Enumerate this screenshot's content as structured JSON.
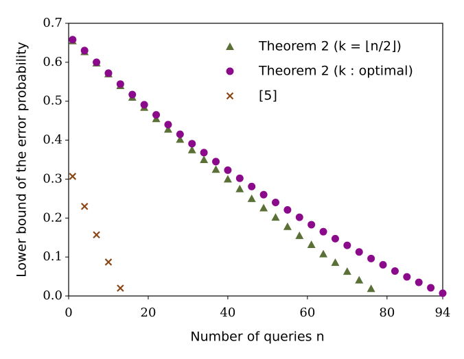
{
  "chart_data": {
    "type": "scatter",
    "xlabel": "Number of queries n",
    "ylabel": "Lower bound of the error probability",
    "xlim": [
      0,
      94
    ],
    "ylim": [
      0,
      0.7
    ],
    "xticks": [
      0,
      20,
      40,
      60,
      80,
      94
    ],
    "yticks": [
      {
        "value": 0,
        "label": "0.0"
      },
      0.1,
      0.2,
      0.3,
      0.4,
      0.5,
      0.6,
      0.7
    ],
    "legend": "upper right",
    "series": [
      {
        "name": "Theorem 2 (k = ⌊n/2⌋)",
        "color": "#5a7036",
        "marker": "triangle",
        "x": [
          1,
          4,
          7,
          10,
          13,
          16,
          19,
          22,
          25,
          28,
          31,
          34,
          37,
          40,
          43,
          46,
          49,
          52,
          55,
          58,
          61,
          64,
          67,
          70,
          73,
          76
        ],
        "values": [
          0.655,
          0.627,
          0.598,
          0.57,
          0.54,
          0.51,
          0.484,
          0.455,
          0.428,
          0.402,
          0.375,
          0.35,
          0.325,
          0.3,
          0.275,
          0.25,
          0.226,
          0.202,
          0.178,
          0.155,
          0.132,
          0.108,
          0.086,
          0.063,
          0.041,
          0.019
        ]
      },
      {
        "name": "Theorem 2 (k : optimal)",
        "color": "#8b0a8b",
        "marker": "circle",
        "x": [
          1,
          4,
          7,
          10,
          13,
          16,
          19,
          22,
          25,
          28,
          31,
          34,
          37,
          40,
          43,
          46,
          49,
          52,
          55,
          58,
          61,
          64,
          67,
          70,
          73,
          76,
          79,
          82,
          85,
          88,
          91,
          94
        ],
        "values": [
          0.658,
          0.63,
          0.6,
          0.572,
          0.544,
          0.517,
          0.491,
          0.465,
          0.44,
          0.415,
          0.391,
          0.368,
          0.345,
          0.323,
          0.302,
          0.281,
          0.26,
          0.24,
          0.221,
          0.202,
          0.183,
          0.165,
          0.147,
          0.13,
          0.113,
          0.096,
          0.08,
          0.064,
          0.049,
          0.035,
          0.021,
          0.007
        ]
      },
      {
        "name": "[5]",
        "color": "#8b4513",
        "marker": "x",
        "x": [
          1,
          4,
          7,
          10,
          13
        ],
        "values": [
          0.307,
          0.23,
          0.157,
          0.087,
          0.02
        ]
      }
    ]
  }
}
